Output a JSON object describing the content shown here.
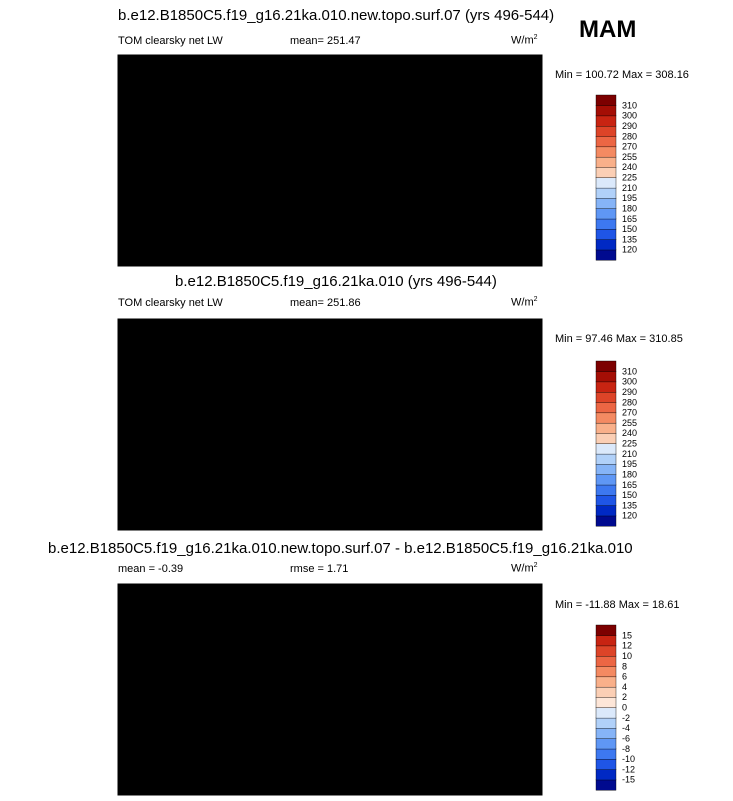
{
  "season": "MAM",
  "colors": {
    "abs": [
      "#000a8f",
      "#0029c4",
      "#1f55e6",
      "#3d78f0",
      "#5f97f5",
      "#86b4f7",
      "#b1d1f9",
      "#dbe9fb",
      "#fde6d8",
      "#fbcfb5",
      "#f9b08a",
      "#f48a62",
      "#ec6644",
      "#dd4428",
      "#c82412",
      "#a40e05",
      "#7c0000"
    ],
    "diff": [
      "#000a8f",
      "#0029c4",
      "#1f55e6",
      "#3d78f0",
      "#5f97f5",
      "#86b4f7",
      "#b1d1f9",
      "#dbe9fb",
      "#fde6d8",
      "#fbcfb5",
      "#f9b08a",
      "#f48a62",
      "#ec6644",
      "#dd4428",
      "#c82412",
      "#7c0000"
    ]
  },
  "chart_data": [
    {
      "type": "heatmap",
      "name": "panel-1",
      "title": "b.e12.B1850C5.f19_g16.21ka.010.new.topo.surf.07 (yrs 496-544)",
      "left_label": "TOM clearsky net LW",
      "mean_text": "mean= 251.47",
      "units": "W/m",
      "units_exp": "2",
      "minmax_text": "Min = 100.72 Max = 308.16",
      "colorbar_levels": [
        "120",
        "135",
        "150",
        "165",
        "180",
        "195",
        "210",
        "225",
        "240",
        "255",
        "270",
        "280",
        "290",
        "300",
        "310"
      ],
      "min": 100.72,
      "max": 308.16,
      "mean": 251.47
    },
    {
      "type": "heatmap",
      "name": "panel-2",
      "title": "b.e12.B1850C5.f19_g16.21ka.010 (yrs 496-544)",
      "left_label": "TOM clearsky net LW",
      "mean_text": "mean= 251.86",
      "units": "W/m",
      "units_exp": "2",
      "minmax_text": "Min =  97.46 Max = 310.85",
      "colorbar_levels": [
        "120",
        "135",
        "150",
        "165",
        "180",
        "195",
        "210",
        "225",
        "240",
        "255",
        "270",
        "280",
        "290",
        "300",
        "310"
      ],
      "min": 97.46,
      "max": 310.85,
      "mean": 251.86
    },
    {
      "type": "heatmap",
      "name": "panel-3",
      "title": "b.e12.B1850C5.f19_g16.21ka.010.new.topo.surf.07 - b.e12.B1850C5.f19_g16.21ka.010",
      "left_label": "mean =  -0.39",
      "rmse_text": "rmse =   1.71",
      "units": "W/m",
      "units_exp": "2",
      "minmax_text": "Min = -11.88 Max =  18.61",
      "colorbar_levels": [
        "-15",
        "-12",
        "-10",
        "-8",
        "-6",
        "-4",
        "-2",
        "0",
        "2",
        "4",
        "6",
        "8",
        "10",
        "12",
        "15"
      ],
      "min": -11.88,
      "max": 18.61,
      "mean": -0.39,
      "rmse": 1.71
    }
  ]
}
